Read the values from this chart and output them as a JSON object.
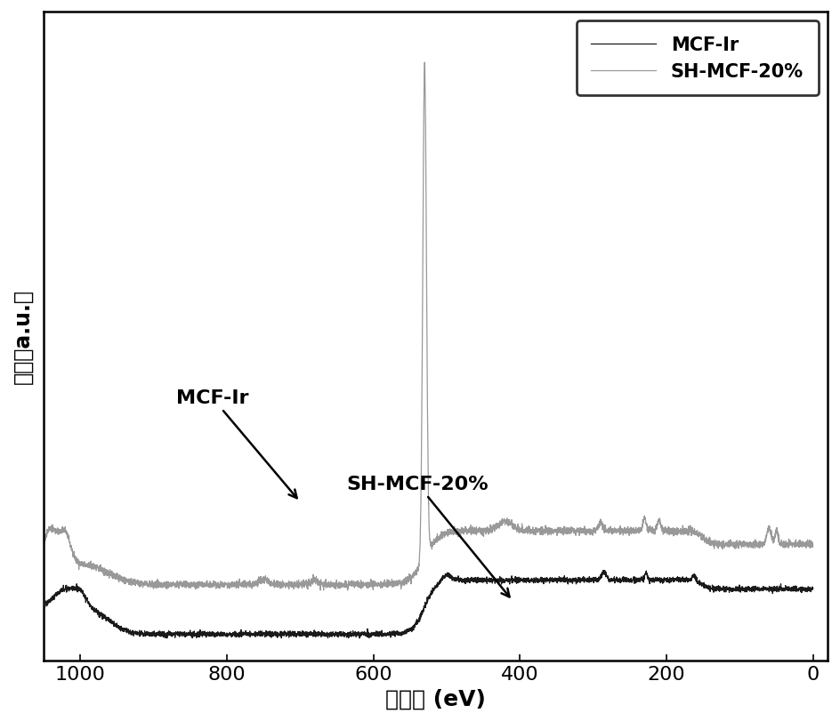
{
  "xlabel": "结合能 (eV)",
  "ylabel": "强度（a.u.）",
  "xlim": [
    1050,
    -20
  ],
  "legend_labels": [
    "SH-MCF-20%",
    "MCF-Ir"
  ],
  "legend_colors": [
    "#1a1a1a",
    "#999999"
  ],
  "line1_color": "#1a1a1a",
  "line2_color": "#999999",
  "annotation1_text": "MCF-Ir",
  "annotation2_text": "SH-MCF-20%",
  "background_color": "#ffffff",
  "seed": 42,
  "xticks": [
    1000,
    800,
    600,
    400,
    200,
    0
  ]
}
